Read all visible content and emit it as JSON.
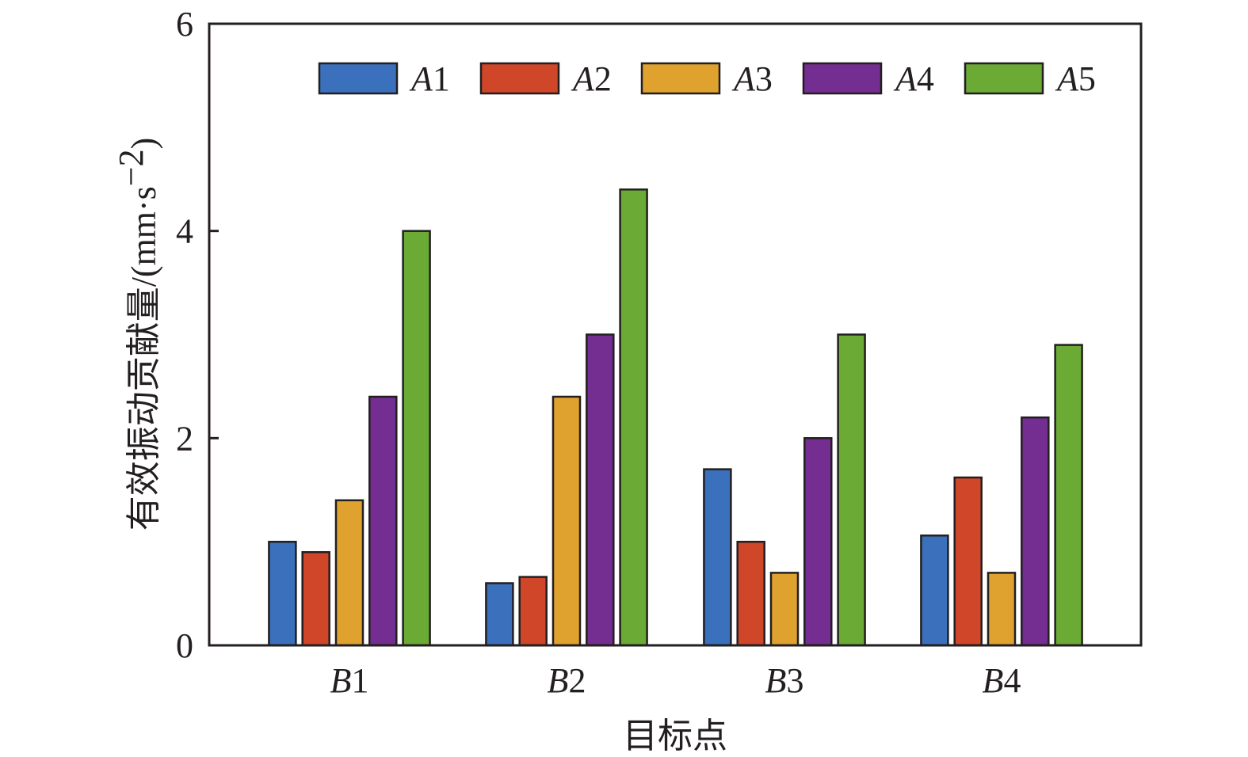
{
  "chart_data": {
    "type": "bar",
    "categories": [
      {
        "letter": "B",
        "num": "1"
      },
      {
        "letter": "B",
        "num": "2"
      },
      {
        "letter": "B",
        "num": "3"
      },
      {
        "letter": "B",
        "num": "4"
      }
    ],
    "series": [
      {
        "name": "A1",
        "letter": "A",
        "num": "1",
        "color": "#3a70bc",
        "values": [
          1.0,
          0.6,
          1.7,
          1.06
        ]
      },
      {
        "name": "A2",
        "letter": "A",
        "num": "2",
        "color": "#cf4628",
        "values": [
          0.9,
          0.66,
          1.0,
          1.62
        ]
      },
      {
        "name": "A3",
        "letter": "A",
        "num": "3",
        "color": "#e0a22f",
        "values": [
          1.4,
          2.4,
          0.7,
          0.7
        ]
      },
      {
        "name": "A4",
        "letter": "A",
        "num": "4",
        "color": "#742d91",
        "values": [
          2.4,
          3.0,
          2.0,
          2.2
        ]
      },
      {
        "name": "A5",
        "letter": "A",
        "num": "5",
        "color": "#6aaa35",
        "values": [
          4.0,
          4.4,
          3.0,
          2.9
        ]
      }
    ],
    "xlabel": "目标点",
    "ylabel": "有效振动贡献量",
    "ylabel_unit": "/(mm·s",
    "ylabel_unit_exp": "−2",
    "ylabel_unit_close": ")",
    "ylim": [
      0,
      6
    ],
    "yticks": [
      "0",
      "2",
      "4",
      "6"
    ],
    "legend_position": "top-right",
    "grid": false
  }
}
